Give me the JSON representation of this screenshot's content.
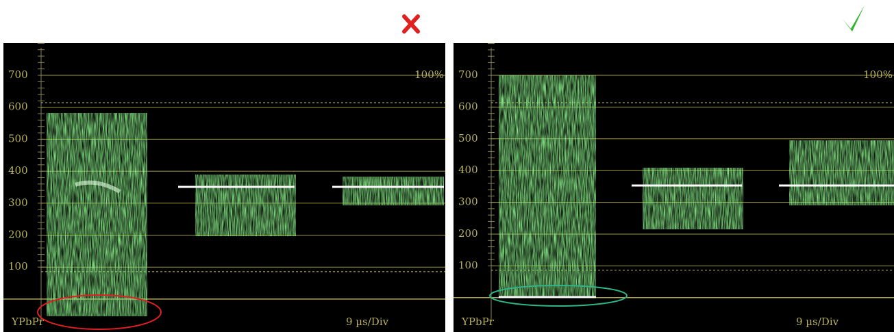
{
  "panels": [
    {
      "axis_labels": [
        "700",
        "600",
        "500",
        "400",
        "300",
        "200",
        "100"
      ],
      "percent_label": "100%",
      "format_label": "YPbPr",
      "scale_label": "9 µs/Div"
    },
    {
      "axis_labels": [
        "700",
        "600",
        "500",
        "400",
        "300",
        "200",
        "100"
      ],
      "percent_label": "100%",
      "format_label": "YPbPr",
      "scale_label": "9 µs/Div"
    }
  ]
}
